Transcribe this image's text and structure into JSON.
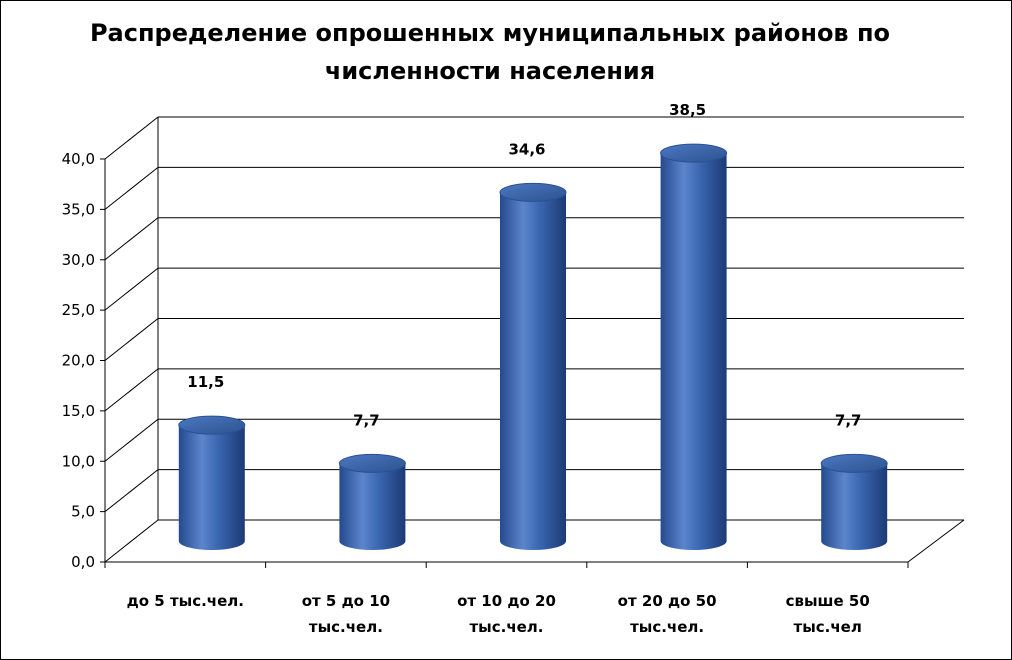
{
  "chart_data": {
    "type": "bar",
    "title_lines": [
      "Распределение опрошенных муниципальных районов по",
      "численности населения"
    ],
    "categories": [
      [
        "до 5 тыс.чел."
      ],
      [
        "от 5 до 10",
        "тыс.чел."
      ],
      [
        "от 10 до 20",
        "тыс.чел."
      ],
      [
        "от 20 до 50",
        "тыс.чел."
      ],
      [
        "свыше 50",
        "тыс.чел"
      ]
    ],
    "values": [
      11.5,
      7.7,
      34.6,
      38.5,
      7.7
    ],
    "data_labels": [
      "11,5",
      "7,7",
      "34,6",
      "38,5",
      "7,7"
    ],
    "yticks": [
      "0,0",
      "5,0",
      "10,0",
      "15,0",
      "20,0",
      "25,0",
      "30,0",
      "35,0",
      "40,0"
    ],
    "ylim": [
      0,
      40
    ],
    "ystep": 5,
    "grid": true,
    "style_3d": "cylinder",
    "bar_color": "#3a66b0",
    "bar_color_light": "#7fa1d8",
    "bar_color_dark": "#1f3f7a"
  }
}
